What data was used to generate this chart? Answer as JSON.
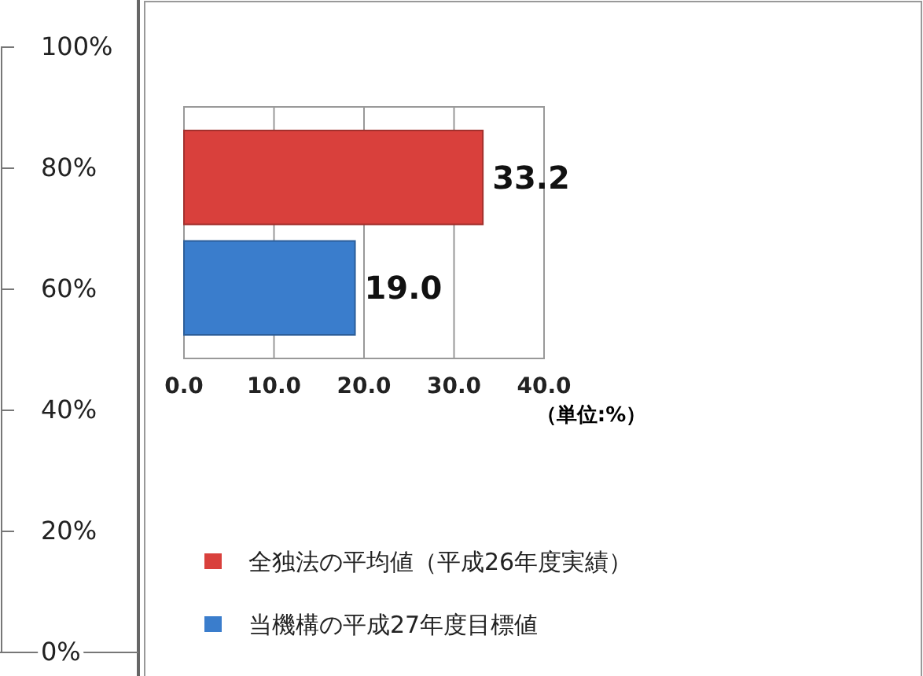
{
  "chart_data": [
    {
      "type": "bar",
      "categories": [
        null
      ],
      "values": [
        null
      ],
      "ylim": [
        0,
        100
      ],
      "yticks": [
        {
          "value": 0,
          "label": "0%"
        },
        {
          "value": 20,
          "label": "20%"
        },
        {
          "value": 40,
          "label": "40%"
        },
        {
          "value": 60,
          "label": "60%"
        },
        {
          "value": 80,
          "label": "80%"
        },
        {
          "value": 100,
          "label": "100%"
        }
      ],
      "tick_labels": "y"
    },
    {
      "type": "bar",
      "orientation": "horizontal",
      "categories": [
        null,
        null
      ],
      "series": [
        {
          "name": "全独法の平均値（平成26年度実績）",
          "color": "#d9403c",
          "values": [
            33.2,
            null
          ],
          "value_labels": [
            "33.2",
            null
          ]
        },
        {
          "name": "当機構の平成27年度目標値",
          "color": "#3a7dcc",
          "values": [
            null,
            19.0
          ],
          "value_labels": [
            null,
            "19.0"
          ]
        }
      ],
      "xlim": [
        0,
        40
      ],
      "xticks": [
        {
          "value": 0,
          "label": "0.0"
        },
        {
          "value": 10,
          "label": "10.0"
        },
        {
          "value": 20,
          "label": "20.0"
        },
        {
          "value": 30,
          "label": "30.0"
        },
        {
          "value": 40,
          "label": "40.0"
        }
      ],
      "grid": "x",
      "legend": "bottom",
      "annotations": [
        "（単位:%）"
      ]
    }
  ]
}
